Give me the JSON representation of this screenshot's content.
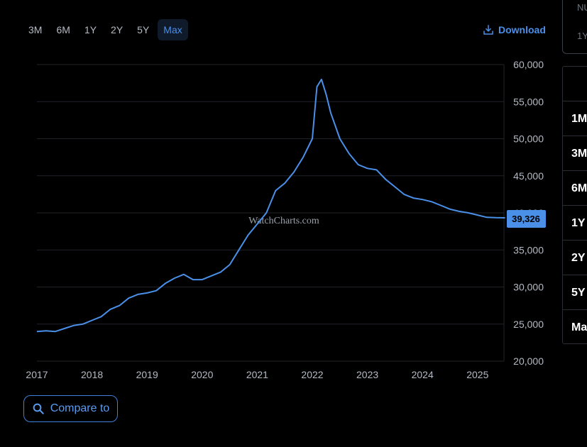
{
  "toolbar": {
    "ranges": [
      {
        "label": "3M",
        "active": false
      },
      {
        "label": "6M",
        "active": false
      },
      {
        "label": "1Y",
        "active": false
      },
      {
        "label": "2Y",
        "active": false
      },
      {
        "label": "5Y",
        "active": false
      },
      {
        "label": "Max",
        "active": true
      }
    ],
    "download_label": "Download",
    "download_icon": "download-icon"
  },
  "compare": {
    "label": "Compare to",
    "icon": "search-icon"
  },
  "side_card": {
    "line1": "NU",
    "line2": "1Y"
  },
  "side_table": {
    "rows": [
      "1M",
      "3M",
      "6M",
      "1Y",
      "2Y",
      "5Y",
      "Ma"
    ]
  },
  "colors": {
    "line": "#4a8fe8",
    "accent": "#4a8fe8",
    "grid": "#1f2328",
    "text": "#b4bac4"
  },
  "chart_data": {
    "type": "line",
    "watermark": "WatchCharts.com",
    "current_value_label": "39,326",
    "current_value": 39326,
    "x_tick_labels": [
      "2017",
      "2018",
      "2019",
      "2020",
      "2021",
      "2022",
      "2023",
      "2024",
      "2025"
    ],
    "y_tick_labels": [
      "20,000",
      "25,000",
      "30,000",
      "35,000",
      "40,000",
      "45,000",
      "50,000",
      "55,000",
      "60,000"
    ],
    "xlim": [
      "2017-01",
      "2025-07"
    ],
    "ylim": [
      20000,
      60000
    ],
    "grid": true,
    "y_axis_side": "right",
    "series": [
      {
        "x": [
          "2017-01",
          "2017-03",
          "2017-05",
          "2017-07",
          "2017-09",
          "2017-11",
          "2018-01",
          "2018-03",
          "2018-05",
          "2018-07",
          "2018-09",
          "2018-11",
          "2019-01",
          "2019-03",
          "2019-05",
          "2019-07",
          "2019-09",
          "2019-11",
          "2020-01",
          "2020-03",
          "2020-05",
          "2020-07",
          "2020-09",
          "2020-11",
          "2021-01",
          "2021-03",
          "2021-05",
          "2021-07",
          "2021-09",
          "2021-11",
          "2022-01",
          "2022-02",
          "2022-03",
          "2022-04",
          "2022-05",
          "2022-07",
          "2022-09",
          "2022-11",
          "2023-01",
          "2023-03",
          "2023-05",
          "2023-07",
          "2023-09",
          "2023-11",
          "2024-01",
          "2024-03",
          "2024-05",
          "2024-07",
          "2024-09",
          "2024-11",
          "2025-01",
          "2025-03",
          "2025-05",
          "2025-07"
        ],
        "values": [
          24000,
          24100,
          24000,
          24400,
          24800,
          25000,
          25500,
          26000,
          27000,
          27500,
          28500,
          29000,
          29200,
          29500,
          30500,
          31200,
          31700,
          31000,
          31000,
          31500,
          32000,
          33000,
          35000,
          37000,
          38500,
          40000,
          43000,
          44000,
          45500,
          47500,
          50000,
          57000,
          58000,
          56000,
          53500,
          50000,
          48000,
          46500,
          46000,
          45800,
          44500,
          43500,
          42500,
          42000,
          41800,
          41500,
          41000,
          40500,
          40200,
          40000,
          39700,
          39400,
          39350,
          39326
        ]
      }
    ]
  }
}
